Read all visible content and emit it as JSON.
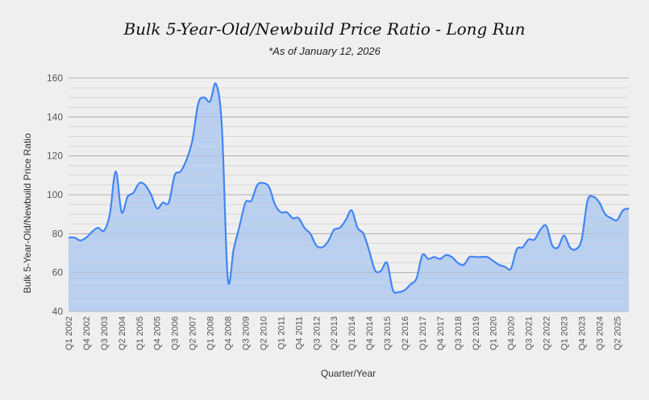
{
  "chart_data": {
    "type": "area",
    "title": "Bulk 5-Year-Old/Newbuild Price Ratio - Long Run",
    "subtitle": "*As of January 12, 2026",
    "xlabel": "Quarter/Year",
    "ylabel": "Bulk 5-Year-Old/Newbuild Price Ratio",
    "ylim": [
      40,
      160
    ],
    "yticks": [
      40,
      60,
      80,
      100,
      120,
      140,
      160
    ],
    "grid": true,
    "legend": "none",
    "line_color": "#4285f4",
    "fill_color": "#b9cff0",
    "xtick_labels": [
      "Q1 2002",
      "Q4 2002",
      "Q3 2003",
      "Q2 2004",
      "Q1 2005",
      "Q4 2005",
      "Q3 2006",
      "Q2 2007",
      "Q1 2008",
      "Q4 2008",
      "Q3 2009",
      "Q2 2010",
      "Q1 2011",
      "Q4 2011",
      "Q3 2012",
      "Q2 2013",
      "Q1 2014",
      "Q4 2014",
      "Q3 2015",
      "Q2 2016",
      "Q1 2017",
      "Q4 2017",
      "Q3 2018",
      "Q2 2019",
      "Q1 2020",
      "Q4 2020",
      "Q3 2021",
      "Q2 2022",
      "Q1 2023",
      "Q4 2023",
      "Q3 2024",
      "Q2 2025"
    ],
    "x_start": "Q1 2002",
    "x_end": "Q4 2025",
    "series": [
      {
        "name": "Bulk 5-Year-Old/Newbuild Price Ratio",
        "values": [
          78,
          78,
          76.5,
          78,
          81,
          83,
          81.5,
          90,
          112,
          91,
          99,
          101,
          106,
          105,
          100,
          93,
          96,
          96,
          110,
          112,
          118,
          128,
          147,
          150,
          148,
          157,
          135,
          57,
          72,
          84,
          96,
          97,
          105,
          106,
          104,
          95,
          91,
          91,
          88,
          88,
          83,
          80,
          74,
          73,
          76,
          82,
          83,
          87,
          92,
          83,
          80,
          71,
          61,
          61,
          65,
          51,
          50,
          51,
          54,
          57,
          69,
          67,
          68,
          67,
          69,
          68,
          65,
          64,
          68,
          68,
          68,
          68,
          66,
          64,
          63,
          62,
          72,
          73,
          77,
          77,
          82,
          84,
          74,
          73,
          79,
          73,
          72,
          77,
          97,
          99,
          96,
          90,
          88,
          87,
          92,
          93
        ]
      }
    ]
  }
}
